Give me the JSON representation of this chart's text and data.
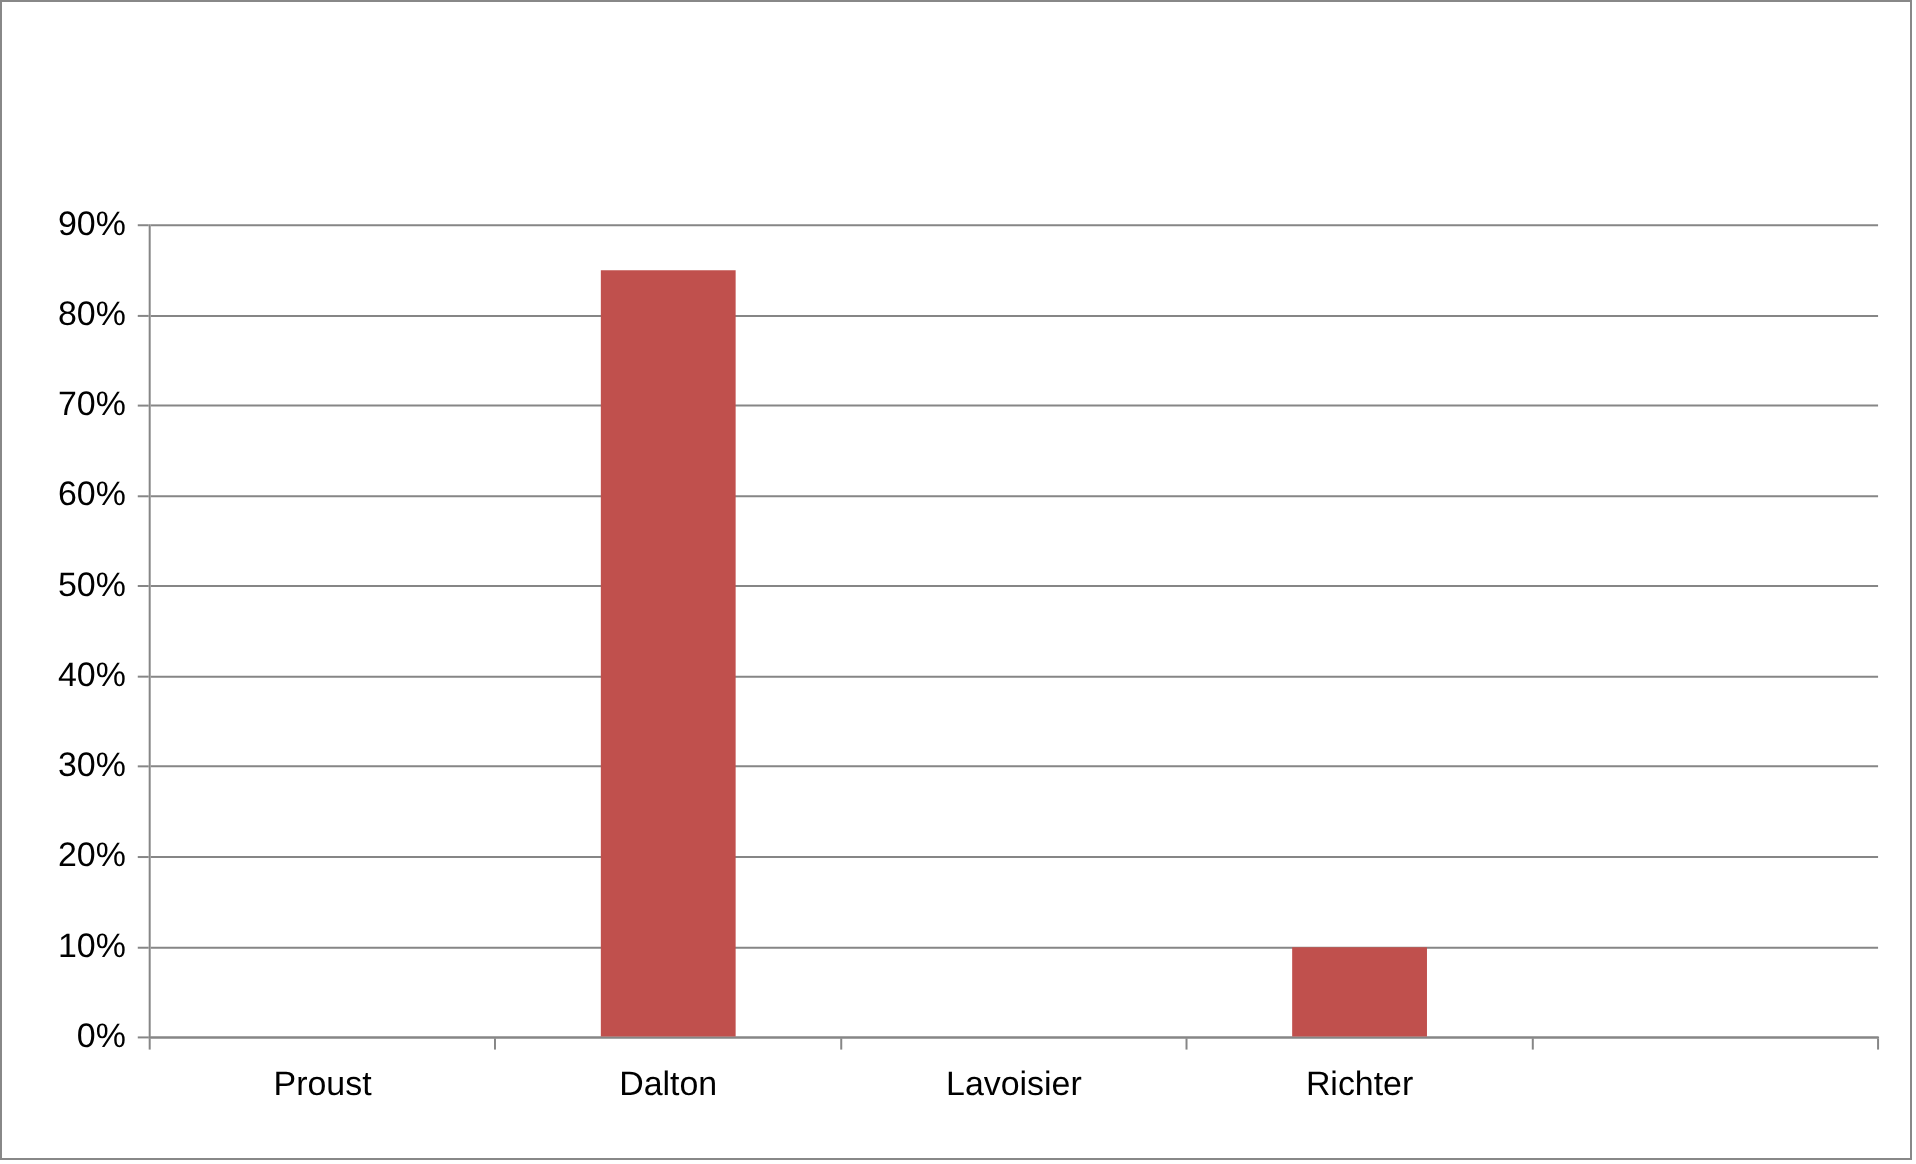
{
  "chart_data": {
    "type": "bar",
    "categories": [
      "Proust",
      "Dalton",
      "Lavoisier",
      "Richter",
      null
    ],
    "values": [
      0,
      85,
      0,
      10,
      0
    ],
    "color": "#c0504d",
    "ylim": [
      0,
      90
    ],
    "yticks": [
      {
        "value": 0,
        "label": "0%"
      },
      {
        "value": 10,
        "label": "10%"
      },
      {
        "value": 20,
        "label": "20%"
      },
      {
        "value": 30,
        "label": "30%"
      },
      {
        "value": 40,
        "label": "40%"
      },
      {
        "value": 50,
        "label": "50%"
      },
      {
        "value": 60,
        "label": "60%"
      },
      {
        "value": 70,
        "label": "70%"
      },
      {
        "value": 80,
        "label": "80%"
      },
      {
        "value": 90,
        "label": "90%"
      }
    ],
    "grid": "y",
    "legend": false
  }
}
